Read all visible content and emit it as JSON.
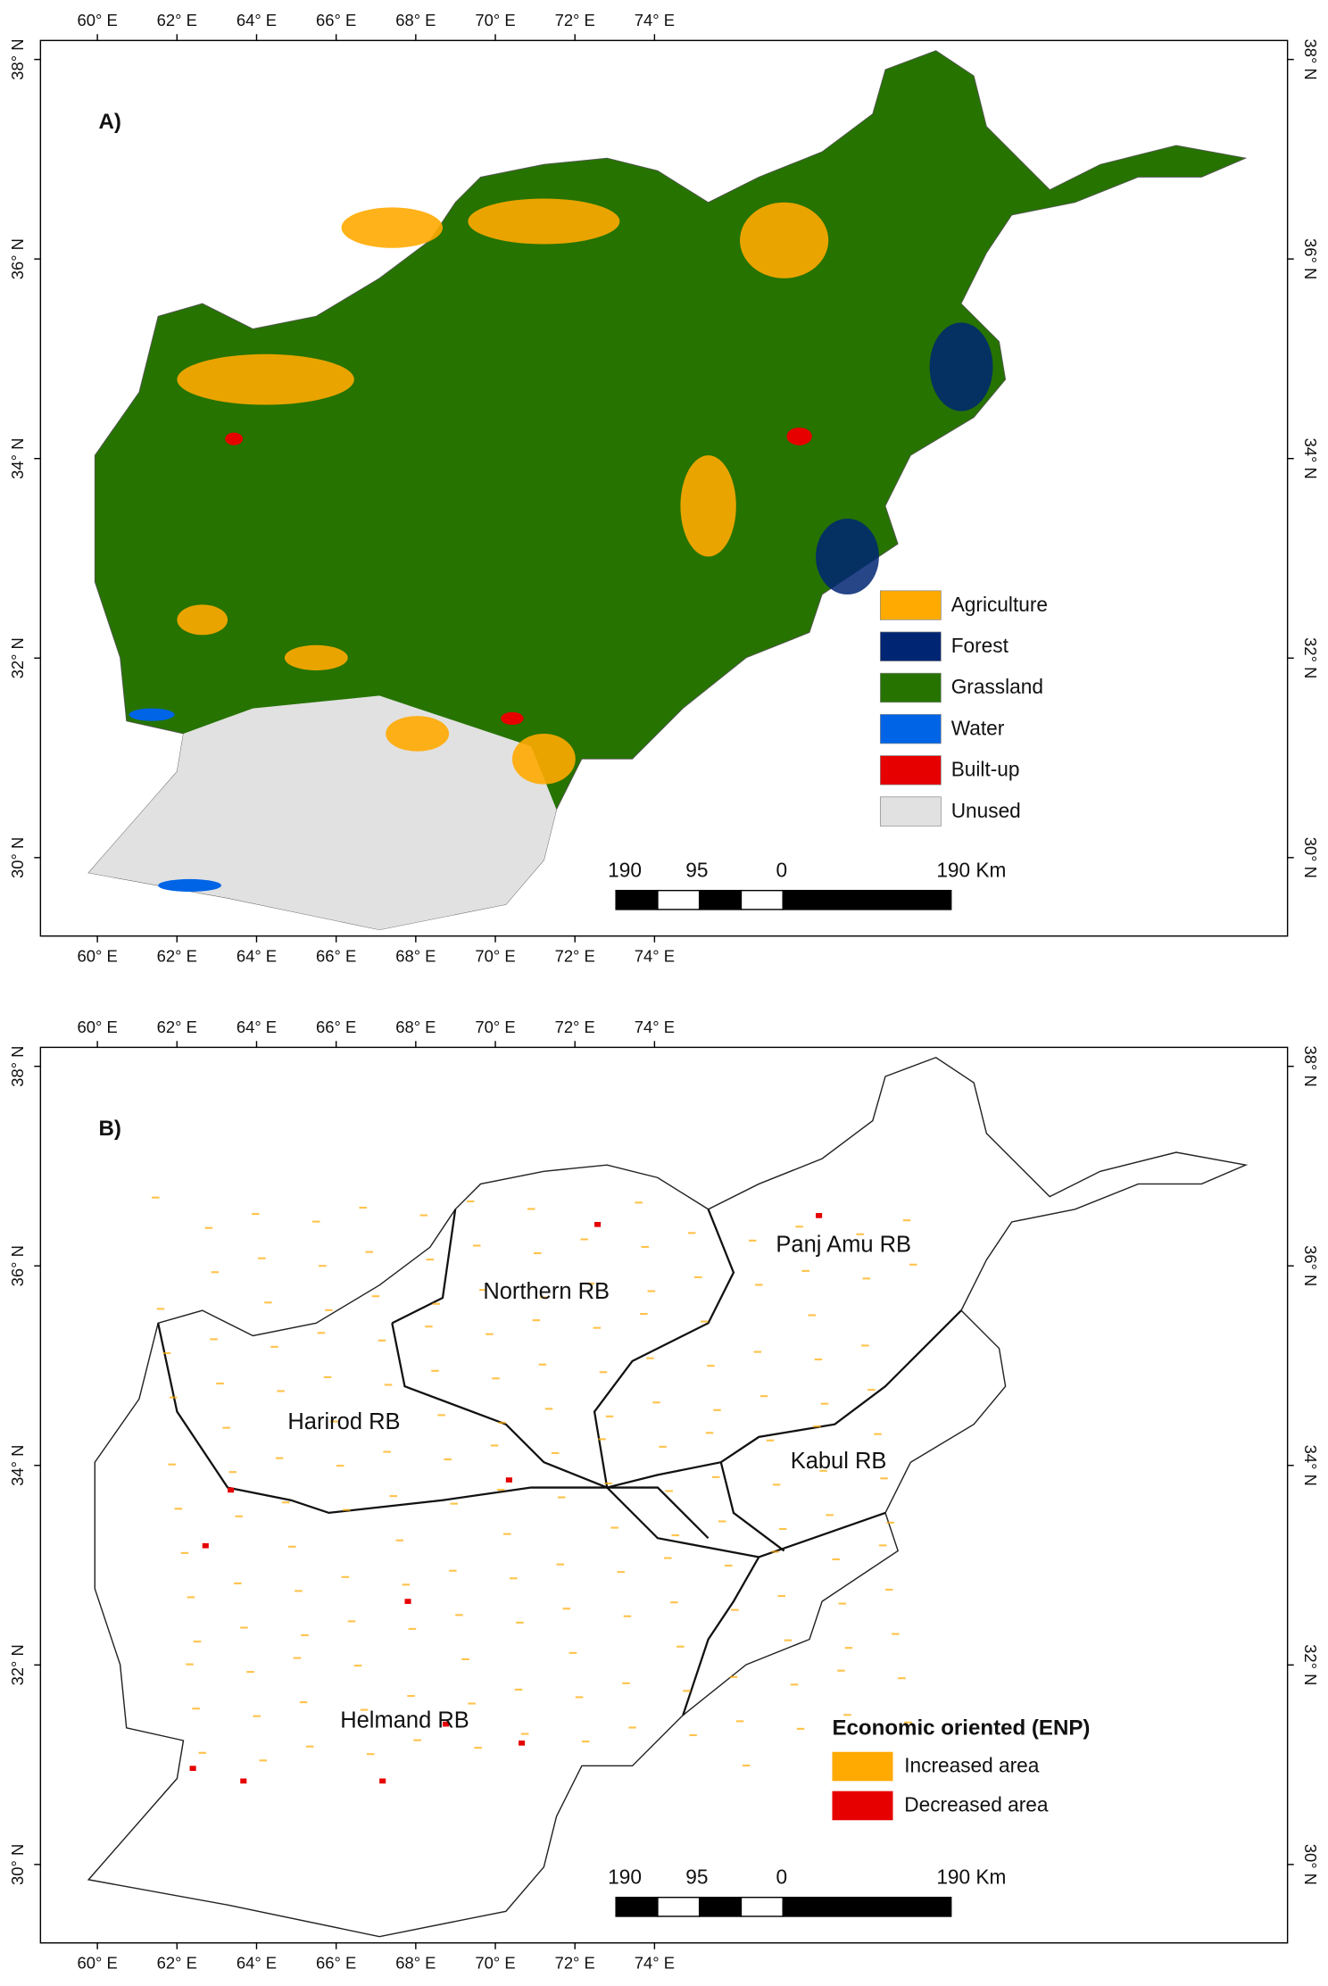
{
  "panels": [
    {
      "label": "A)",
      "x_ticks": [
        "60° E",
        "62° E",
        "64° E",
        "66° E",
        "68° E",
        "70° E",
        "72° E",
        "74° E"
      ],
      "y_ticks": [
        "30° N",
        "32° N",
        "34° N",
        "36° N",
        "38° N"
      ],
      "legend": {
        "items": [
          {
            "label": "Agriculture",
            "color": "#ffaa00"
          },
          {
            "label": "Forest",
            "color": "#002673"
          },
          {
            "label": "Grassland",
            "color": "#267300"
          },
          {
            "label": "Water",
            "color": "#0064e6"
          },
          {
            "label": "Built-up",
            "color": "#e60000"
          },
          {
            "label": "Unused",
            "color": "#e1e1e1"
          }
        ]
      },
      "scale_bar": [
        "190",
        "95",
        "0",
        "190 Km"
      ]
    },
    {
      "label": "B)",
      "x_ticks": [
        "60° E",
        "62° E",
        "64° E",
        "66° E",
        "68° E",
        "70° E",
        "72° E",
        "74° E"
      ],
      "y_ticks": [
        "30° N",
        "32° N",
        "34° N",
        "36° N",
        "38° N"
      ],
      "legend": {
        "title": "Economic oriented (ENP)",
        "items": [
          {
            "label": "Increased area",
            "color": "#ffaa00"
          },
          {
            "label": "Decreased area",
            "color": "#e60000"
          }
        ]
      },
      "scale_bar": [
        "190",
        "95",
        "0",
        "190 Km"
      ],
      "basins": [
        "Panj Amu RB",
        "Northern RB",
        "Harirod RB",
        "Kabul RB",
        "Helmand RB"
      ]
    }
  ]
}
